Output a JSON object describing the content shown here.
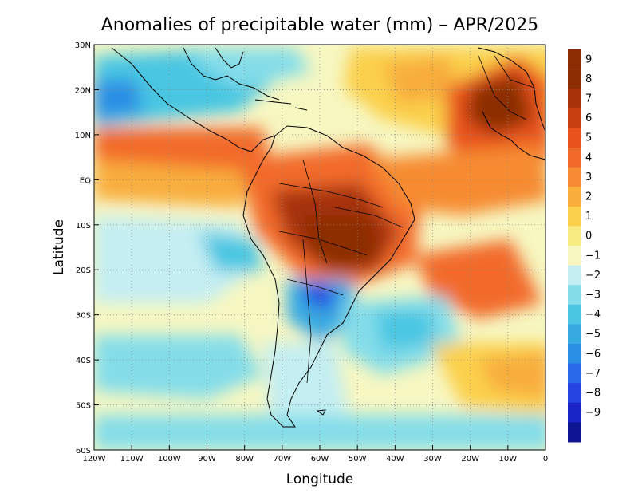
{
  "title": "Anomalies of precipitable water (mm) – APR/2025",
  "xlabel": "Longitude",
  "ylabel": "Latitude",
  "x_ticks": [
    "120W",
    "110W",
    "100W",
    "90W",
    "80W",
    "70W",
    "60W",
    "50W",
    "40W",
    "30W",
    "20W",
    "10W",
    "0"
  ],
  "y_ticks": [
    "30N",
    "20N",
    "10N",
    "EQ",
    "10S",
    "20S",
    "30S",
    "40S",
    "50S",
    "60S"
  ],
  "colorbar": {
    "labels": [
      "9",
      "8",
      "7",
      "6",
      "5",
      "4",
      "3",
      "2",
      "1",
      "0",
      "-1",
      "-2",
      "-3",
      "-4",
      "-5",
      "-6",
      "-7",
      "-8",
      "-9"
    ],
    "colors": [
      "#8c2d04",
      "#a6330a",
      "#c8400f",
      "#e9521a",
      "#f26a2a",
      "#f68b33",
      "#f8ad3d",
      "#fbd04c",
      "#f8ec80",
      "#f7f7c2",
      "#c4eef2",
      "#84dde9",
      "#4ac6e2",
      "#37aae2",
      "#2a8ee5",
      "#2a68ea",
      "#2544e2",
      "#1a25c6",
      "#0d1592"
    ]
  },
  "map": {
    "lon_range": [
      -120,
      0
    ],
    "lat_range": [
      -60,
      30
    ],
    "grid": true,
    "field_colors": {
      "pos_high": "#8c2d04",
      "pos_mid": "#e9521a",
      "pos_low": "#f8ad3d",
      "neutral": "#f7f7c2",
      "neg_low": "#84dde9",
      "neg_mid": "#37aae2",
      "neg_high": "#2544e2"
    }
  }
}
